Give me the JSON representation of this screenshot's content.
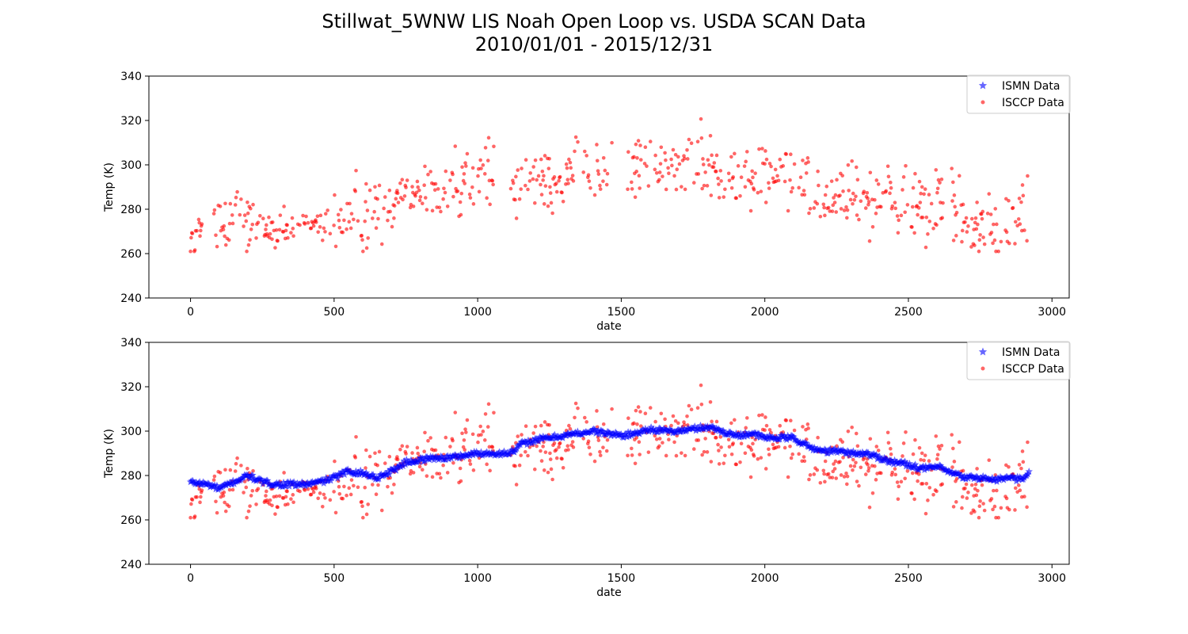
{
  "suptitle": {
    "line1": "Stillwat_5WNW LIS Noah Open Loop vs. USDA SCAN Data",
    "line2": "2010/01/01 - 2015/12/31"
  },
  "colors": {
    "ismn": "#0000ff",
    "isccp": "#ff0000",
    "axes": "#000000",
    "legend_border": "#cccccc"
  },
  "chart_data": [
    {
      "type": "scatter",
      "xlabel": "date",
      "ylabel": "Temp (K)",
      "xlim": [
        -145,
        3060
      ],
      "ylim": [
        240,
        340
      ],
      "xticks": [
        0,
        500,
        1000,
        1500,
        2000,
        2500,
        3000
      ],
      "yticks": [
        240,
        260,
        280,
        300,
        320,
        340
      ],
      "grid": false,
      "legend_position": "top-right",
      "legend": [
        {
          "label": "ISMN Data",
          "marker": "star",
          "color": "#0000ff"
        },
        {
          "label": "ISCCP Data",
          "marker": "circle",
          "color": "#ff0000"
        }
      ],
      "series": [
        {
          "name": "ISCCP Data",
          "marker": "circle",
          "color": "#ff0000",
          "alpha": 0.6,
          "note_seeded": true
        }
      ]
    },
    {
      "type": "scatter",
      "xlabel": "date",
      "ylabel": "Temp (K)",
      "xlim": [
        -145,
        3060
      ],
      "ylim": [
        240,
        340
      ],
      "xticks": [
        0,
        500,
        1000,
        1500,
        2000,
        2500,
        3000
      ],
      "yticks": [
        240,
        260,
        280,
        300,
        320,
        340
      ],
      "grid": false,
      "legend_position": "top-right",
      "legend": [
        {
          "label": "ISMN Data",
          "marker": "star",
          "color": "#0000ff"
        },
        {
          "label": "ISCCP Data",
          "marker": "circle",
          "color": "#ff0000"
        }
      ],
      "series": [
        {
          "name": "ISCCP Data",
          "marker": "circle",
          "color": "#ff0000",
          "alpha": 0.6
        },
        {
          "name": "ISMN Data",
          "marker": "star",
          "color": "#0000ff",
          "alpha": 0.6
        }
      ]
    }
  ],
  "ismn_curve": {
    "x": [
      0,
      60,
      100,
      150,
      200,
      250,
      300,
      350,
      400,
      450,
      500,
      550,
      600,
      650,
      700,
      750,
      800,
      850,
      900,
      950,
      1000,
      1050,
      1100,
      1130,
      1150,
      1200,
      1250,
      1300,
      1350,
      1400,
      1450,
      1500,
      1550,
      1600,
      1650,
      1700,
      1750,
      1800,
      1850,
      1900,
      1950,
      2000,
      2050,
      2100,
      2150,
      2200,
      2250,
      2300,
      2350,
      2400,
      2450,
      2500,
      2550,
      2600,
      2650,
      2700,
      2750,
      2800,
      2850,
      2900,
      2920
    ],
    "y": [
      277,
      276,
      274,
      277,
      280,
      277,
      276,
      276,
      276,
      277,
      279,
      282,
      281,
      279,
      282,
      286,
      287,
      288,
      288,
      289,
      290,
      290,
      290,
      291,
      294,
      296,
      297,
      298,
      299,
      300,
      299,
      298,
      299,
      301,
      300,
      300,
      301,
      302,
      300,
      298,
      299,
      297,
      297,
      297,
      293,
      291,
      291,
      290,
      290,
      288,
      286,
      285,
      283,
      284,
      281,
      279,
      279,
      278,
      279,
      278,
      282
    ]
  },
  "isccp_curve": {
    "x": [
      0,
      50,
      100,
      150,
      200,
      250,
      300,
      350,
      400,
      450,
      500,
      550,
      600,
      650,
      700,
      750,
      800,
      850,
      900,
      950,
      1000,
      1050,
      1100,
      1150,
      1200,
      1250,
      1300,
      1350,
      1400,
      1450,
      1500,
      1550,
      1600,
      1650,
      1700,
      1750,
      1800,
      1850,
      1900,
      1950,
      2000,
      2050,
      2100,
      2150,
      2200,
      2250,
      2300,
      2350,
      2400,
      2450,
      2500,
      2550,
      2600,
      2650,
      2700,
      2750,
      2800,
      2850,
      2920
    ],
    "y": [
      265,
      266,
      272,
      278,
      276,
      272,
      267,
      271,
      274,
      272,
      277,
      276,
      275,
      278,
      285,
      292,
      289,
      288,
      290,
      292,
      296,
      291,
      288,
      290,
      296,
      294,
      296,
      298,
      300,
      293,
      296,
      301,
      300,
      298,
      299,
      302,
      300,
      297,
      296,
      297,
      295,
      294,
      296,
      292,
      287,
      285,
      286,
      284,
      284,
      282,
      282,
      281,
      282,
      283,
      270,
      270,
      271,
      272,
      280
    ]
  }
}
